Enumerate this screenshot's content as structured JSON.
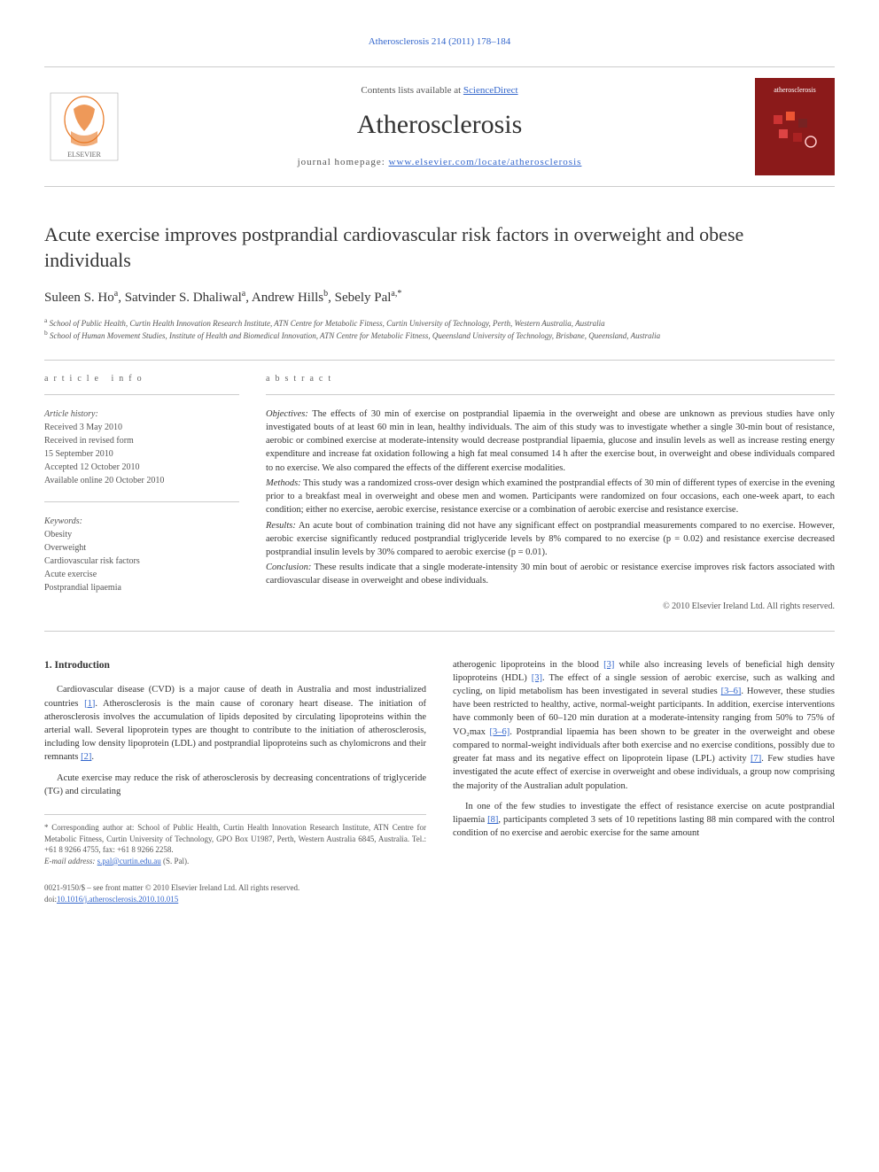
{
  "header": {
    "citation": "Atherosclerosis 214 (2011) 178–184",
    "contents_line_prefix": "Contents lists available at ",
    "contents_link": "ScienceDirect",
    "journal_name": "Atherosclerosis",
    "homepage_prefix": "journal homepage: ",
    "homepage_url": "www.elsevier.com/locate/atherosclerosis",
    "cover_label": "atherosclerosis"
  },
  "title": "Acute exercise improves postprandial cardiovascular risk factors in overweight and obese individuals",
  "authors_html": "Suleen S. Ho<sup>a</sup>, Satvinder S. Dhaliwal<sup>a</sup>, Andrew Hills<sup>b</sup>, Sebely Pal<sup>a,*</sup>",
  "affiliations": {
    "a": "School of Public Health, Curtin Health Innovation Research Institute, ATN Centre for Metabolic Fitness, Curtin University of Technology, Perth, Western Australia, Australia",
    "b": "School of Human Movement Studies, Institute of Health and Biomedical Innovation, ATN Centre for Metabolic Fitness, Queensland University of Technology, Brisbane, Queensland, Australia"
  },
  "article_info": {
    "heading": "article info",
    "history_label": "Article history:",
    "received": "Received 3 May 2010",
    "revised_label": "Received in revised form",
    "revised_date": "15 September 2010",
    "accepted": "Accepted 12 October 2010",
    "online": "Available online 20 October 2010",
    "keywords_label": "Keywords:",
    "keywords": [
      "Obesity",
      "Overweight",
      "Cardiovascular risk factors",
      "Acute exercise",
      "Postprandial lipaemia"
    ]
  },
  "abstract": {
    "heading": "abstract",
    "objectives_label": "Objectives:",
    "objectives": "The effects of 30 min of exercise on postprandial lipaemia in the overweight and obese are unknown as previous studies have only investigated bouts of at least 60 min in lean, healthy individuals. The aim of this study was to investigate whether a single 30-min bout of resistance, aerobic or combined exercise at moderate-intensity would decrease postprandial lipaemia, glucose and insulin levels as well as increase resting energy expenditure and increase fat oxidation following a high fat meal consumed 14 h after the exercise bout, in overweight and obese individuals compared to no exercise. We also compared the effects of the different exercise modalities.",
    "methods_label": "Methods:",
    "methods": "This study was a randomized cross-over design which examined the postprandial effects of 30 min of different types of exercise in the evening prior to a breakfast meal in overweight and obese men and women. Participants were randomized on four occasions, each one-week apart, to each condition; either no exercise, aerobic exercise, resistance exercise or a combination of aerobic exercise and resistance exercise.",
    "results_label": "Results:",
    "results": "An acute bout of combination training did not have any significant effect on postprandial measurements compared to no exercise. However, aerobic exercise significantly reduced postprandial triglyceride levels by 8% compared to no exercise (p = 0.02) and resistance exercise decreased postprandial insulin levels by 30% compared to aerobic exercise (p = 0.01).",
    "conclusion_label": "Conclusion:",
    "conclusion": "These results indicate that a single moderate-intensity 30 min bout of aerobic or resistance exercise improves risk factors associated with cardiovascular disease in overweight and obese individuals.",
    "copyright": "© 2010 Elsevier Ireland Ltd. All rights reserved."
  },
  "body": {
    "section_number": "1.",
    "section_title": "Introduction",
    "col1_p1_a": "Cardiovascular disease (CVD) is a major cause of death in Australia and most industrialized countries ",
    "ref1": "[1]",
    "col1_p1_b": ". Atherosclerosis is the main cause of coronary heart disease. The initiation of atherosclerosis involves the accumulation of lipids deposited by circulating lipoproteins within the arterial wall. Several lipoprotein types are thought to contribute to the initiation of atherosclerosis, including low density lipoprotein (LDL) and postprandial lipoproteins such as chylomicrons and their remnants ",
    "ref2": "[2]",
    "col1_p1_c": ".",
    "col1_p2": "Acute exercise may reduce the risk of atherosclerosis by decreasing concentrations of triglyceride (TG) and circulating",
    "col2_p1_a": "atherogenic lipoproteins in the blood ",
    "ref3a": "[3]",
    "col2_p1_b": " while also increasing levels of beneficial high density lipoproteins (HDL) ",
    "ref3b": "[3]",
    "col2_p1_c": ". The effect of a single session of aerobic exercise, such as walking and cycling, on lipid metabolism has been investigated in several studies ",
    "ref36a": "[3–6]",
    "col2_p1_d": ". However, these studies have been restricted to healthy, active, normal-weight participants. In addition, exercise interventions have commonly been of 60–120 min duration at a moderate-intensity ranging from 50% to 75% of VO₂max ",
    "ref36b": "[3–6]",
    "col2_p1_e": ". Postprandial lipaemia has been shown to be greater in the overweight and obese compared to normal-weight individuals after both exercise and no exercise conditions, possibly due to greater fat mass and its negative effect on lipoprotein lipase (LPL) activity ",
    "ref7": "[7]",
    "col2_p1_f": ". Few studies have investigated the acute effect of exercise in overweight and obese individuals, a group now comprising the majority of the Australian adult population.",
    "col2_p2_a": "In one of the few studies to investigate the effect of resistance exercise on acute postprandial lipaemia ",
    "ref8": "[8]",
    "col2_p2_b": ", participants completed 3 sets of 10 repetitions lasting 88 min compared with the control condition of no exercise and aerobic exercise for the same amount"
  },
  "footer": {
    "corresponding": "* Corresponding author at: School of Public Health, Curtin Health Innovation Research Institute, ATN Centre for Metabolic Fitness, Curtin University of Technology, GPO Box U1987, Perth, Western Australia 6845, Australia. Tel.: +61 8 9266 4755, fax: +61 8 9266 2258.",
    "email_label": "E-mail address:",
    "email": "s.pal@curtin.edu.au",
    "email_suffix": " (S. Pal).",
    "issn_line": "0021-9150/$ – see front matter © 2010 Elsevier Ireland Ltd. All rights reserved.",
    "doi_label": "doi:",
    "doi": "10.1016/j.atherosclerosis.2010.10.015"
  },
  "colors": {
    "link": "#3366cc",
    "text": "#333333",
    "muted": "#555555",
    "rule": "#cccccc",
    "cover_bg": "#8b1a1a",
    "elsevier_orange": "#e87722"
  }
}
